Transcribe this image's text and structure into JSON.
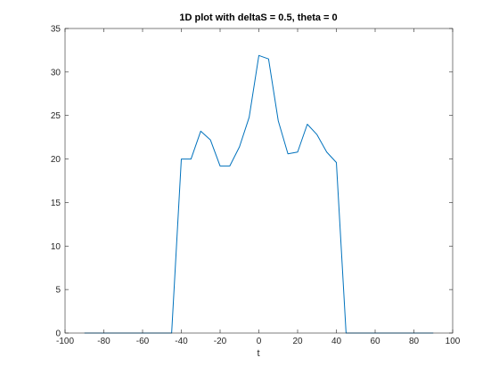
{
  "chart_data": {
    "type": "line",
    "title": "1D plot with deltaS = 0.5, theta = 0",
    "xlabel": "t",
    "ylabel": "",
    "xlim": [
      -100,
      100
    ],
    "ylim": [
      0,
      35
    ],
    "xticks": [
      -100,
      -80,
      -60,
      -40,
      -20,
      0,
      20,
      40,
      60,
      80,
      100
    ],
    "yticks": [
      0,
      5,
      10,
      15,
      20,
      25,
      30,
      35
    ],
    "grid": false,
    "series": [
      {
        "color": "#0072BD",
        "x": [
          -90,
          -85,
          -80,
          -75,
          -70,
          -65,
          -60,
          -55,
          -50,
          -45,
          -40,
          -35,
          -30,
          -25,
          -20,
          -15,
          -10,
          -5,
          0,
          5,
          10,
          15,
          20,
          25,
          30,
          35,
          40,
          45,
          50,
          55,
          60,
          65,
          70,
          75,
          80,
          85,
          90
        ],
        "y": [
          0,
          0,
          0,
          0,
          0,
          0,
          0,
          0,
          0,
          0,
          20.0,
          20.0,
          23.2,
          22.2,
          19.2,
          19.2,
          21.4,
          24.8,
          31.9,
          31.5,
          24.4,
          20.6,
          20.8,
          24.0,
          22.8,
          20.8,
          19.6,
          0,
          0,
          0,
          0,
          0,
          0,
          0,
          0,
          0,
          0
        ]
      }
    ]
  }
}
